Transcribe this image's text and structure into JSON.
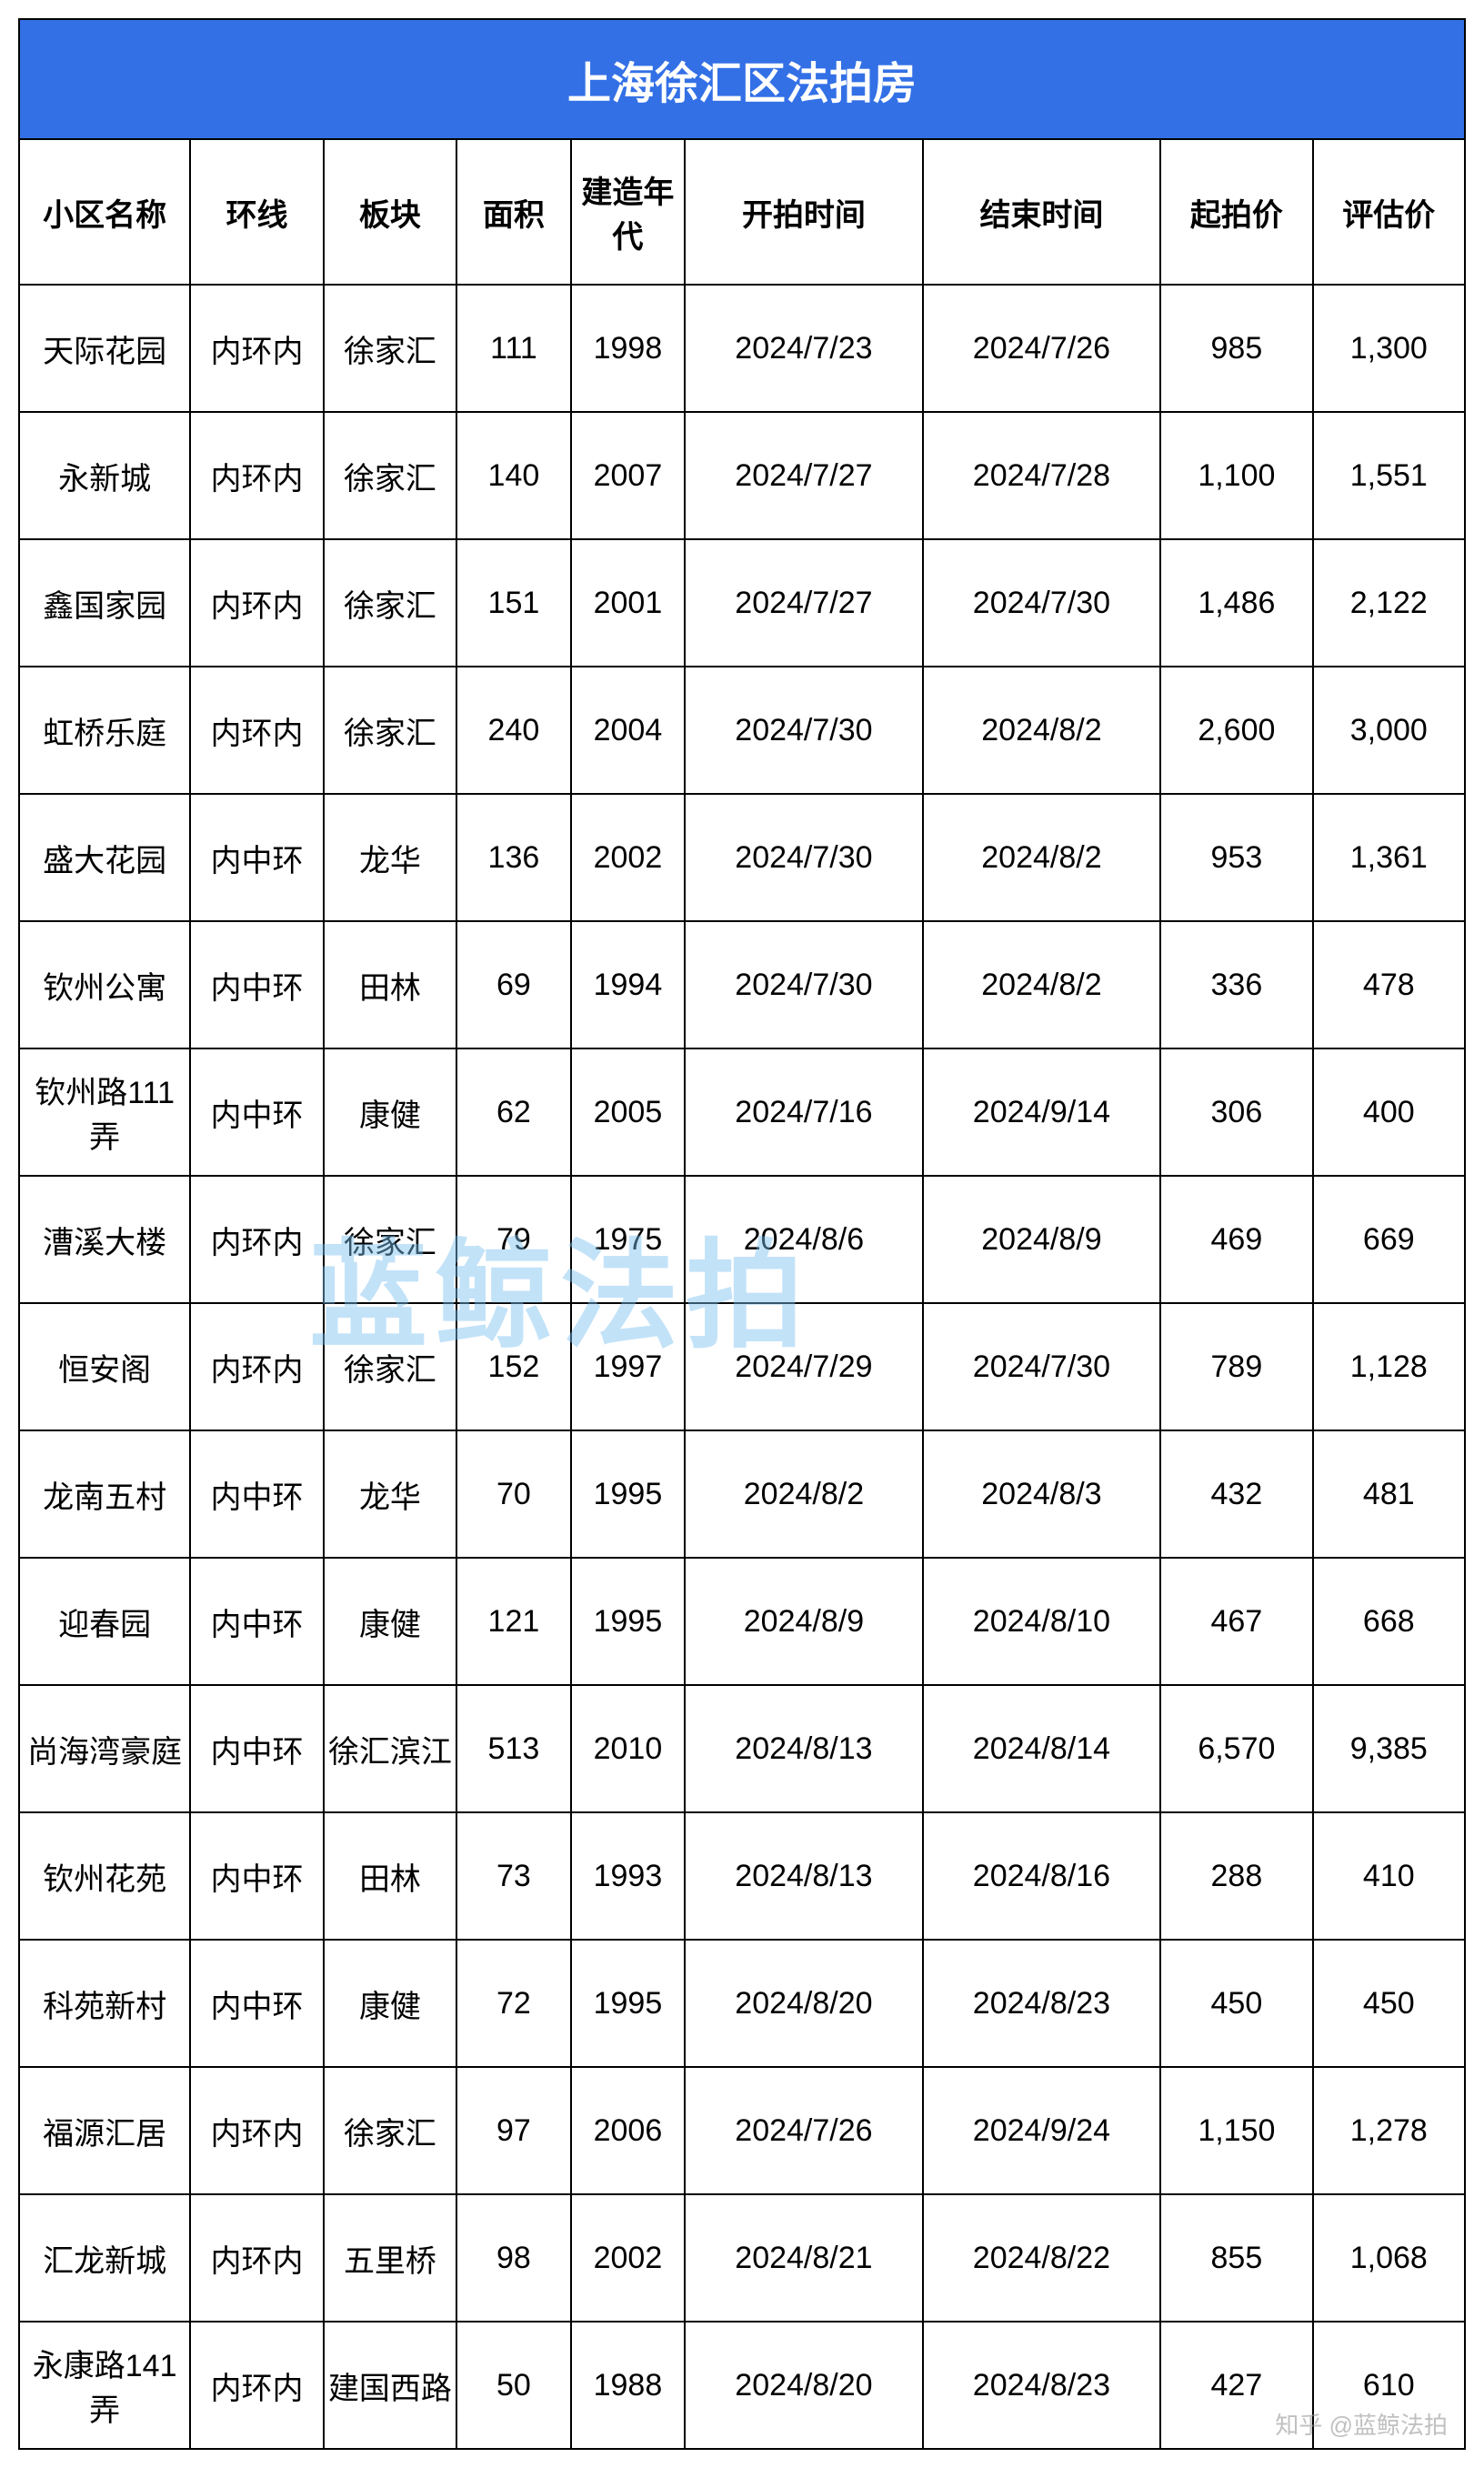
{
  "title": "上海徐汇区法拍房",
  "watermark_text": "蓝鲸法拍",
  "footer_watermark": "知乎 @蓝鲸法拍",
  "columns": [
    "小区名称",
    "环线",
    "板块",
    "面积",
    "建造年代",
    "开拍时间",
    "结束时间",
    "起拍价",
    "评估价"
  ],
  "rows": [
    [
      "天际花园",
      "内环内",
      "徐家汇",
      "111",
      "1998",
      "2024/7/23",
      "2024/7/26",
      "985",
      "1,300"
    ],
    [
      "永新城",
      "内环内",
      "徐家汇",
      "140",
      "2007",
      "2024/7/27",
      "2024/7/28",
      "1,100",
      "1,551"
    ],
    [
      "鑫国家园",
      "内环内",
      "徐家汇",
      "151",
      "2001",
      "2024/7/27",
      "2024/7/30",
      "1,486",
      "2,122"
    ],
    [
      "虹桥乐庭",
      "内环内",
      "徐家汇",
      "240",
      "2004",
      "2024/7/30",
      "2024/8/2",
      "2,600",
      "3,000"
    ],
    [
      "盛大花园",
      "内中环",
      "龙华",
      "136",
      "2002",
      "2024/7/30",
      "2024/8/2",
      "953",
      "1,361"
    ],
    [
      "钦州公寓",
      "内中环",
      "田林",
      "69",
      "1994",
      "2024/7/30",
      "2024/8/2",
      "336",
      "478"
    ],
    [
      "钦州路111弄",
      "内中环",
      "康健",
      "62",
      "2005",
      "2024/7/16",
      "2024/9/14",
      "306",
      "400"
    ],
    [
      "漕溪大楼",
      "内环内",
      "徐家汇",
      "79",
      "1975",
      "2024/8/6",
      "2024/8/9",
      "469",
      "669"
    ],
    [
      "恒安阁",
      "内环内",
      "徐家汇",
      "152",
      "1997",
      "2024/7/29",
      "2024/7/30",
      "789",
      "1,128"
    ],
    [
      "龙南五村",
      "内中环",
      "龙华",
      "70",
      "1995",
      "2024/8/2",
      "2024/8/3",
      "432",
      "481"
    ],
    [
      "迎春园",
      "内中环",
      "康健",
      "121",
      "1995",
      "2024/8/9",
      "2024/8/10",
      "467",
      "668"
    ],
    [
      "尚海湾豪庭",
      "内中环",
      "徐汇滨江",
      "513",
      "2010",
      "2024/8/13",
      "2024/8/14",
      "6,570",
      "9,385"
    ],
    [
      "钦州花苑",
      "内中环",
      "田林",
      "73",
      "1993",
      "2024/8/13",
      "2024/8/16",
      "288",
      "410"
    ],
    [
      "科苑新村",
      "内中环",
      "康健",
      "72",
      "1995",
      "2024/8/20",
      "2024/8/23",
      "450",
      "450"
    ],
    [
      "福源汇居",
      "内环内",
      "徐家汇",
      "97",
      "2006",
      "2024/7/26",
      "2024/9/24",
      "1,150",
      "1,278"
    ],
    [
      "汇龙新城",
      "内环内",
      "五里桥",
      "98",
      "2002",
      "2024/8/21",
      "2024/8/22",
      "855",
      "1,068"
    ],
    [
      "永康路141弄",
      "内环内",
      "建国西路",
      "50",
      "1988",
      "2024/8/20",
      "2024/8/23",
      "427",
      "610"
    ]
  ],
  "colors": {
    "header_bg": "#3370e6",
    "header_text": "#ffffff",
    "border": "#000000",
    "watermark": "rgba(120,190,240,0.45)"
  }
}
